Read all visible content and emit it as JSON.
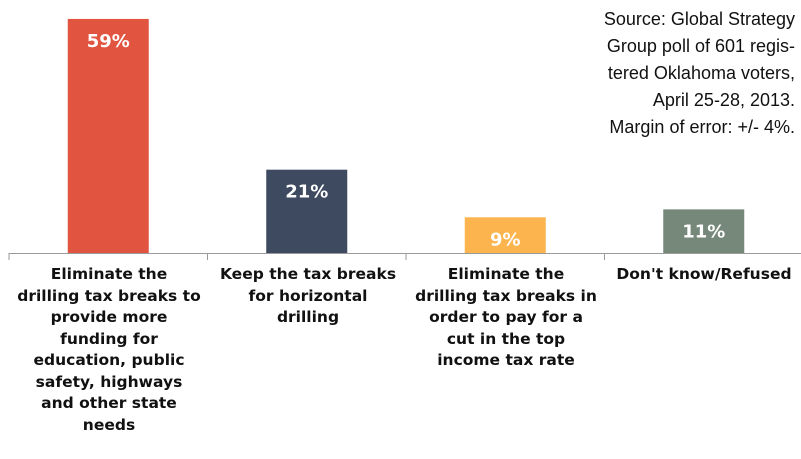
{
  "chart_data": {
    "type": "bar",
    "categories": [
      "Eliminate the drilling tax breaks to provide more funding for education, public safety, highways and other state needs",
      "Keep the tax breaks for horizontal drilling",
      "Eliminate the drilling tax breaks in order to pay for a cut in the top income tax rate",
      "Don't know/Refused"
    ],
    "category_lines": [
      [
        "Eliminate the",
        "drilling tax breaks to",
        "provide more",
        "funding for",
        "education, public",
        "safety, highways",
        "and other state",
        "needs"
      ],
      [
        "Keep the tax breaks",
        "for horizontal",
        "drilling"
      ],
      [
        "Eliminate the",
        "drilling tax breaks in",
        "order to pay for a",
        "cut in the top",
        "income tax rate"
      ],
      [
        "Don't know/Refused"
      ]
    ],
    "values": [
      59,
      21,
      9,
      11
    ],
    "value_labels": [
      "59%",
      "21%",
      "9%",
      "11%"
    ],
    "colors": [
      "#e05440",
      "#3e4a60",
      "#fbb44e",
      "#76887a"
    ],
    "ylim": [
      0,
      61
    ],
    "title": "",
    "xlabel": "",
    "ylabel": "",
    "grid": false,
    "legend": "none"
  },
  "source_note": {
    "lines": [
      "Source: Global Strategy",
      "Group poll of 601 regis-",
      "tered Oklahoma voters,",
      "April 25-28, 2013.",
      "Margin of error: +/- 4%."
    ]
  }
}
